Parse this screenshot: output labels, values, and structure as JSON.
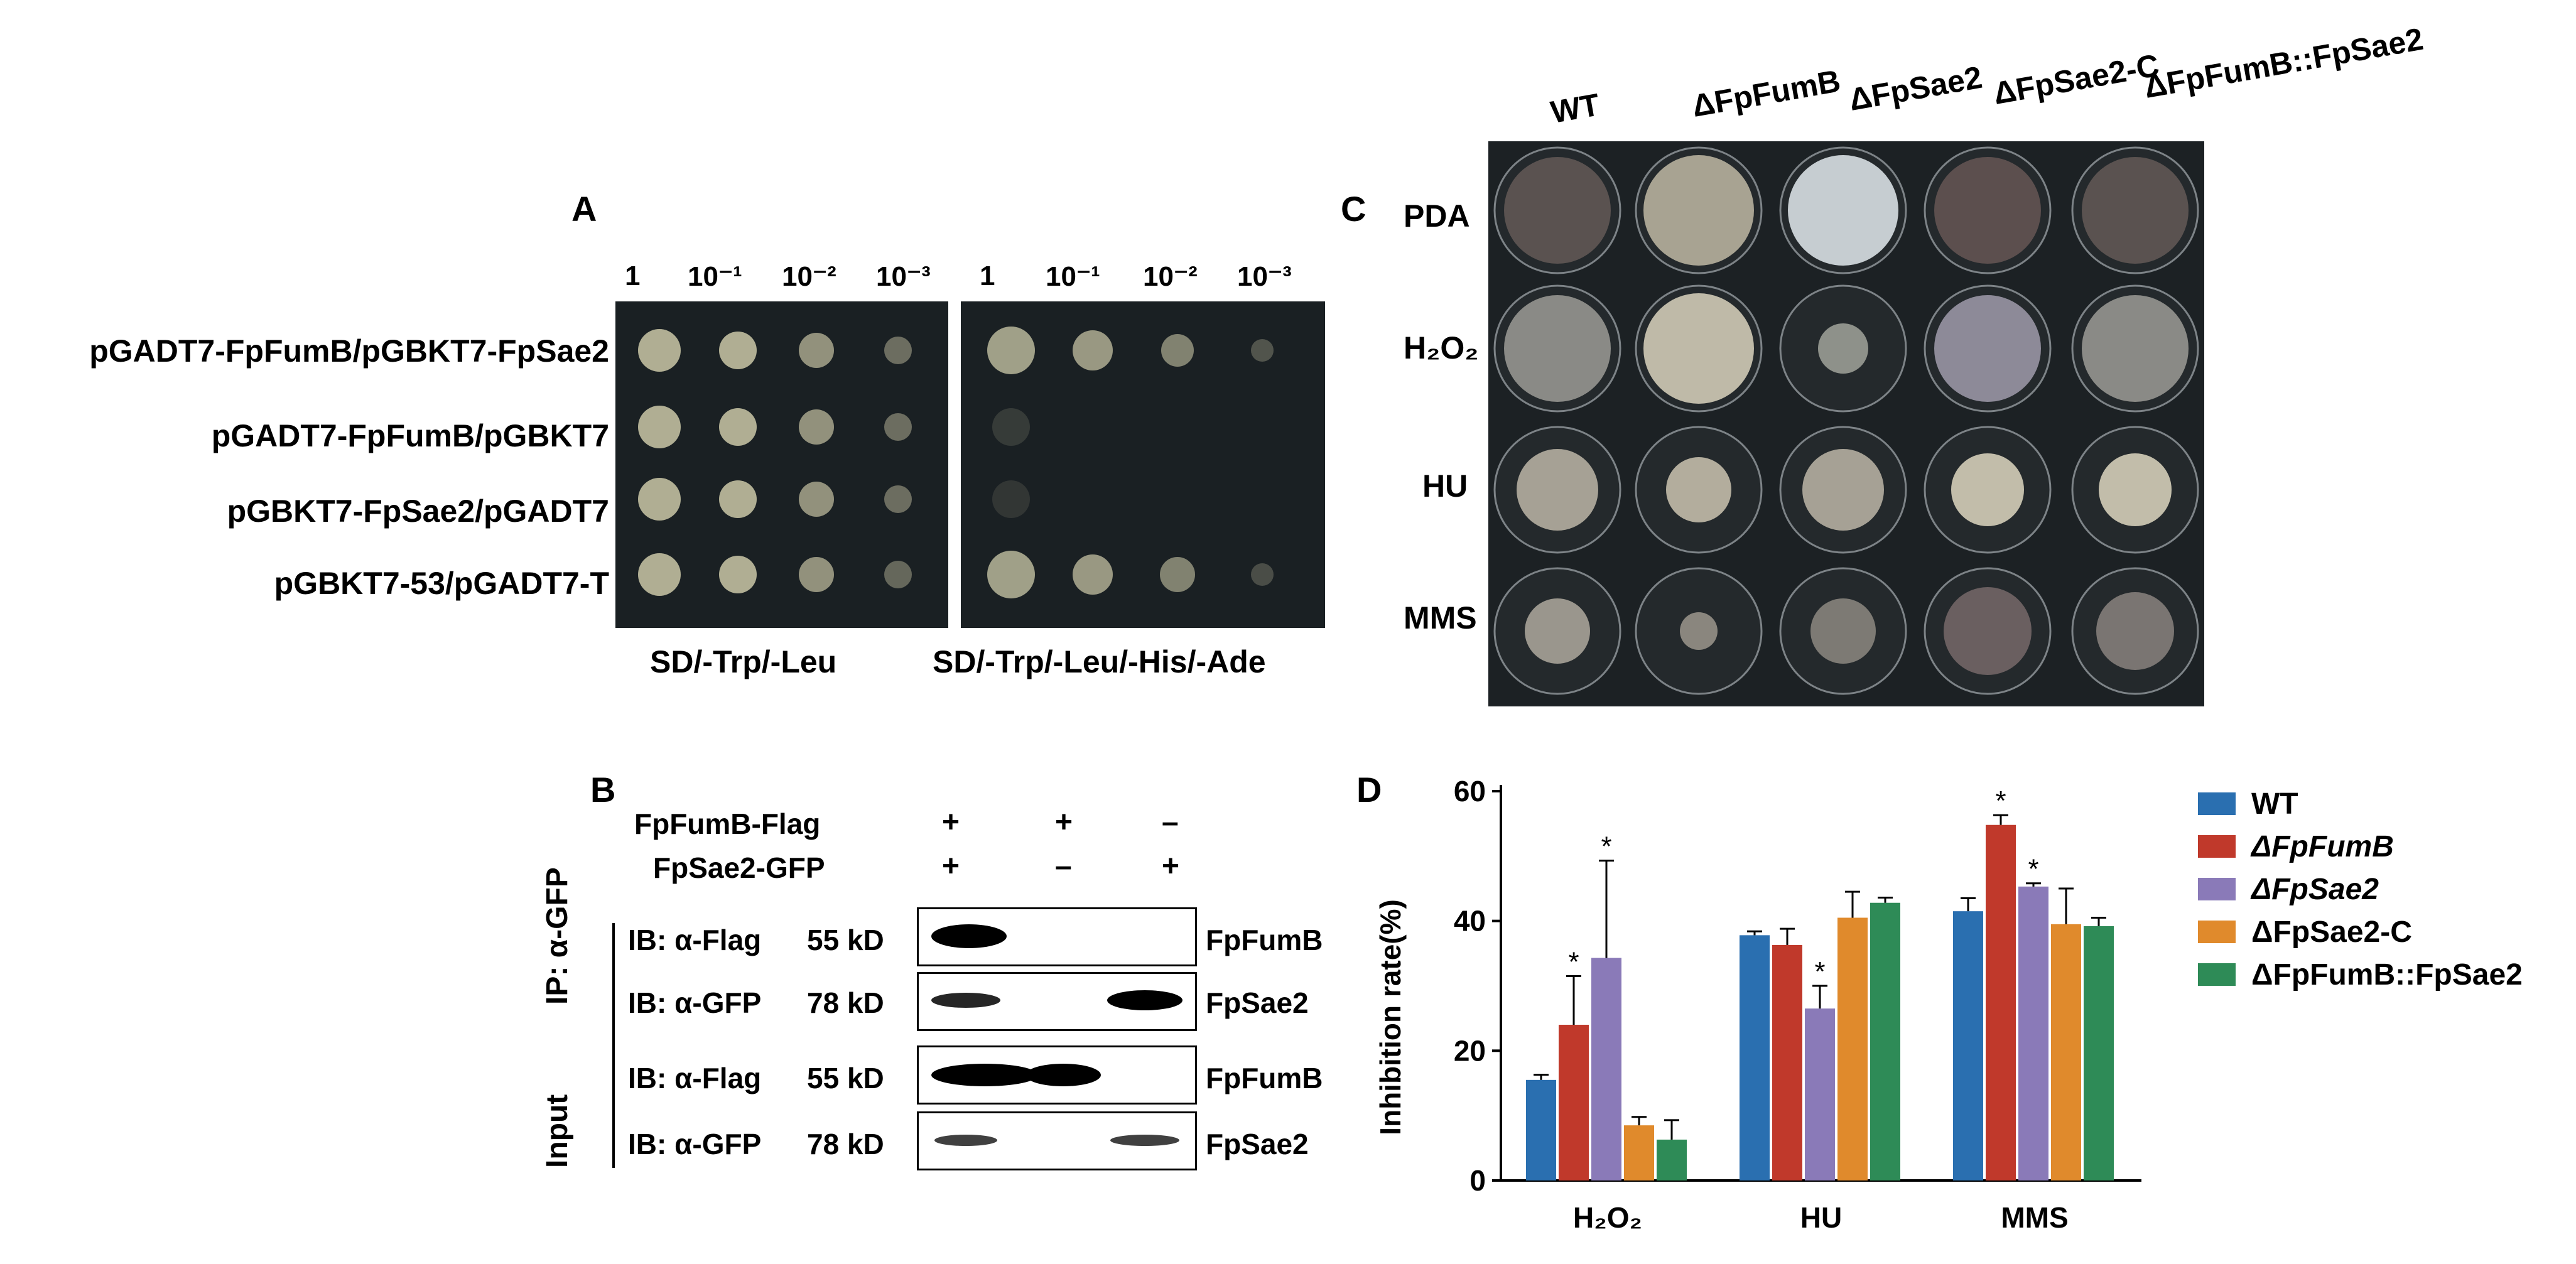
{
  "panelA": {
    "letter": "A",
    "dilutions": [
      "1",
      "10⁻¹",
      "10⁻²",
      "10⁻³"
    ],
    "rows": [
      "pGADT7-FpFumB/pGBKT7-FpSae2",
      "pGADT7-FpFumB/pGBKT7",
      "pGBKT7-FpSae2/pGADT7",
      "pGBKT7-53/pGADT7-T"
    ],
    "media": [
      "SD/-Trp/-Leu",
      "SD/-Trp/-Leu/-His/-Ade"
    ]
  },
  "panelB": {
    "letter": "B",
    "constructs": [
      {
        "name": "FpFumB-Flag",
        "signs": [
          "+",
          "+",
          "–"
        ]
      },
      {
        "name": "FpSae2-GFP",
        "signs": [
          "+",
          "–",
          "+"
        ]
      }
    ],
    "groups": [
      "IP: α-GFP",
      "Input"
    ],
    "blots": [
      {
        "ib": "IB: α-Flag",
        "size": "55 kD",
        "protein": "FpFumB"
      },
      {
        "ib": "IB: α-GFP",
        "size": "78 kD",
        "protein": "FpSae2"
      },
      {
        "ib": "IB: α-Flag",
        "size": "55 kD",
        "protein": "FpFumB"
      },
      {
        "ib": "IB: α-GFP",
        "size": "78 kD",
        "protein": "FpSae2"
      }
    ]
  },
  "panelC": {
    "letter": "C",
    "strains": [
      "WT",
      "ΔFpFumB",
      "ΔFpSae2",
      "ΔFpSae2-C",
      "ΔFpFumB::FpSae2"
    ],
    "conditions": [
      "PDA",
      "H₂O₂",
      "HU",
      "MMS"
    ]
  },
  "panelD": {
    "letter": "D",
    "colors": [
      "#2a6fb0",
      "#c0392b",
      "#8a7ab8",
      "#e08a2c",
      "#2e8b57"
    ],
    "chart_data": {
      "type": "bar",
      "ylabel": "Inhibition rate(%)",
      "ylim": [
        0,
        60
      ],
      "yticks": [
        0,
        20,
        40,
        60
      ],
      "categories": [
        "H₂O₂",
        "HU",
        "MMS"
      ],
      "series": [
        {
          "name": "WT",
          "values": [
            15.5,
            37.8,
            41.5
          ],
          "errors": [
            0.8,
            0.6,
            2.0
          ],
          "sig": [
            false,
            false,
            false
          ]
        },
        {
          "name": "ΔFpFumB",
          "values": [
            24.0,
            36.3,
            54.8
          ],
          "errors": [
            7.5,
            2.5,
            1.5
          ],
          "sig": [
            true,
            false,
            true
          ]
        },
        {
          "name": "ΔFpSae2",
          "values": [
            34.3,
            26.5,
            45.3
          ],
          "errors": [
            15.0,
            3.5,
            0.5
          ],
          "sig": [
            true,
            true,
            true
          ]
        },
        {
          "name": "ΔFpSae2-C",
          "values": [
            8.5,
            40.5,
            39.5
          ],
          "errors": [
            1.3,
            4.0,
            5.5
          ],
          "sig": [
            false,
            false,
            false
          ]
        },
        {
          "name": "ΔFpFumB::FpSae2",
          "values": [
            6.3,
            42.8,
            39.2
          ],
          "errors": [
            3.0,
            0.8,
            1.3
          ],
          "sig": [
            false,
            false,
            false
          ]
        }
      ],
      "sig_marker": "*"
    }
  }
}
